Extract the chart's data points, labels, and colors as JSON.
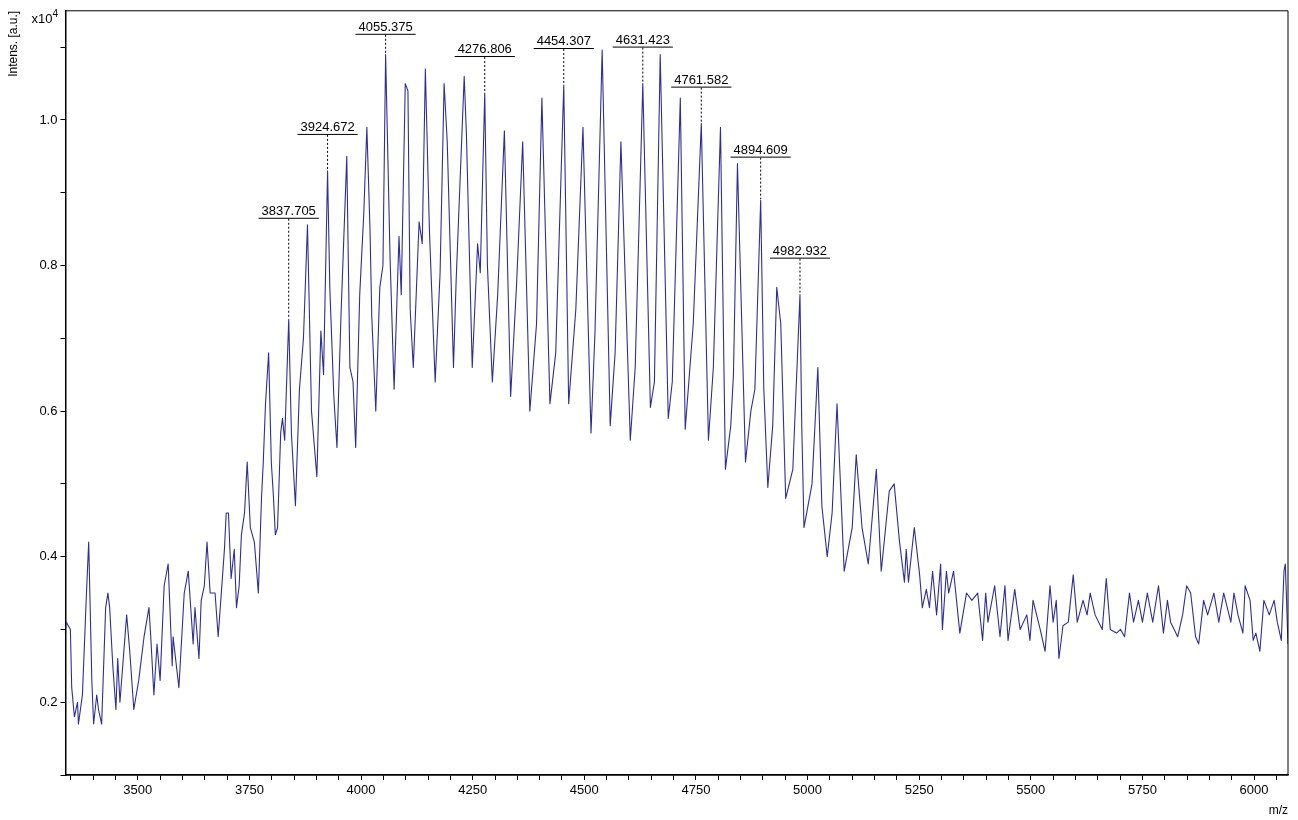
{
  "chart_data": {
    "type": "line",
    "xlabel": "m/z",
    "ylabel": "Intens. [a.u.]",
    "xlim": [
      3338,
      6076
    ],
    "ylim": [
      0.1,
      1.15
    ],
    "xticks": [
      {
        "value": 3350,
        "label": null
      },
      {
        "value": 3400,
        "label": null
      },
      {
        "value": 3450,
        "label": null
      },
      3500,
      {
        "value": 3550,
        "label": null
      },
      {
        "value": 3600,
        "label": null
      },
      {
        "value": 3650,
        "label": null
      },
      {
        "value": 3700,
        "label": null
      },
      3750,
      {
        "value": 3800,
        "label": null
      },
      {
        "value": 3850,
        "label": null
      },
      {
        "value": 3900,
        "label": null
      },
      {
        "value": 3950,
        "label": null
      },
      4000,
      {
        "value": 4050,
        "label": null
      },
      {
        "value": 4100,
        "label": null
      },
      {
        "value": 4150,
        "label": null
      },
      {
        "value": 4200,
        "label": null
      },
      4250,
      {
        "value": 4300,
        "label": null
      },
      {
        "value": 4350,
        "label": null
      },
      {
        "value": 4400,
        "label": null
      },
      {
        "value": 4450,
        "label": null
      },
      4500,
      {
        "value": 4550,
        "label": null
      },
      {
        "value": 4600,
        "label": null
      },
      {
        "value": 4650,
        "label": null
      },
      {
        "value": 4700,
        "label": null
      },
      4750,
      {
        "value": 4800,
        "label": null
      },
      {
        "value": 4850,
        "label": null
      },
      {
        "value": 4900,
        "label": null
      },
      {
        "value": 4950,
        "label": null
      },
      5000,
      {
        "value": 5050,
        "label": null
      },
      {
        "value": 5100,
        "label": null
      },
      {
        "value": 5150,
        "label": null
      },
      {
        "value": 5200,
        "label": null
      },
      5250,
      {
        "value": 5300,
        "label": null
      },
      {
        "value": 5350,
        "label": null
      },
      {
        "value": 5400,
        "label": null
      },
      {
        "value": 5450,
        "label": null
      },
      5500,
      {
        "value": 5550,
        "label": null
      },
      {
        "value": 5600,
        "label": null
      },
      {
        "value": 5650,
        "label": null
      },
      {
        "value": 5700,
        "label": null
      },
      5750,
      {
        "value": 5800,
        "label": null
      },
      {
        "value": 5850,
        "label": null
      },
      {
        "value": 5900,
        "label": null
      },
      {
        "value": 5950,
        "label": null
      },
      6000,
      {
        "value": 6050,
        "label": null
      }
    ],
    "yticks": [
      {
        "value": 0.1,
        "label": null
      },
      0.2,
      {
        "value": 0.3,
        "label": null
      },
      0.4,
      {
        "value": 0.5,
        "label": null
      },
      0.6,
      {
        "value": 0.7,
        "label": null
      },
      0.8,
      {
        "value": 0.9,
        "label": null
      },
      {
        "value": 1,
        "label": "1.0"
      },
      {
        "value": 1.1,
        "label": null
      }
    ],
    "legend": false,
    "marker": "none",
    "line_style": "solid",
    "series": [
      {
        "color": "#2e2e9a",
        "x": [
          3338,
          3340,
          3349,
          3352,
          3358,
          3365,
          3367,
          3376,
          3385,
          3390,
          3397,
          3401,
          3408,
          3412,
          3419,
          3428,
          3433,
          3437,
          3444,
          3451,
          3455,
          3460,
          3475,
          3482,
          3491,
          3502,
          3514,
          3525,
          3529,
          3536,
          3543,
          3550,
          3559,
          3568,
          3577,
          3579,
          3592,
          3604,
          3613,
          3624,
          3628,
          3637,
          3642,
          3649,
          3655,
          3662,
          3673,
          3680,
          3694,
          3698,
          3703,
          3709,
          3716,
          3721,
          3727,
          3732,
          3739,
          3745,
          3752,
          3761,
          3770,
          3777,
          3781,
          3786,
          3793,
          3799,
          3804,
          3808,
          3813,
          3820,
          3824,
          3829,
          3838,
          3844,
          3853,
          3862,
          3871,
          3880,
          3889,
          3901,
          3910,
          3916,
          3925,
          3930,
          3939,
          3946,
          3955,
          3968,
          3975,
          3982,
          3988,
          3997,
          4006,
          4013,
          4020,
          4024,
          4033,
          4042,
          4049,
          4055,
          4065,
          4074,
          4085,
          4090,
          4099,
          4105,
          4110,
          4117,
          4130,
          4137,
          4144,
          4153,
          4166,
          4177,
          4186,
          4193,
          4207,
          4213,
          4231,
          4236,
          4249,
          4261,
          4267,
          4277,
          4283,
          4294,
          4306,
          4321,
          4335,
          4348,
          4362,
          4378,
          4393,
          4405,
          4423,
          4436,
          4454,
          4465,
          4481,
          4497,
          4515,
          4524,
          4540,
          4558,
          4569,
          4582,
          4603,
          4614,
          4631,
          4648,
          4657,
          4670,
          4688,
          4697,
          4715,
          4726,
          4744,
          4762,
          4778,
          4789,
          4805,
          4816,
          4828,
          4834,
          4843,
          4861,
          4873,
          4882,
          4895,
          4902,
          4911,
          4922,
          4931,
          4940,
          4951,
          4967,
          4983,
          4987,
          4992,
          5010,
          5023,
          5032,
          5044,
          5055,
          5066,
          5082,
          5100,
          5109,
          5122,
          5136,
          5154,
          5165,
          5183,
          5194,
          5206,
          5217,
          5221,
          5226,
          5239,
          5251,
          5257,
          5266,
          5273,
          5280,
          5289,
          5298,
          5302,
          5311,
          5316,
          5327,
          5341,
          5356,
          5368,
          5381,
          5392,
          5399,
          5404,
          5419,
          5431,
          5442,
          5449,
          5464,
          5476,
          5491,
          5498,
          5505,
          5521,
          5532,
          5543,
          5550,
          5557,
          5563,
          5572,
          5584,
          5595,
          5604,
          5617,
          5626,
          5633,
          5644,
          5660,
          5669,
          5678,
          5692,
          5701,
          5710,
          5721,
          5730,
          5741,
          5750,
          5761,
          5773,
          5786,
          5797,
          5806,
          5813,
          5829,
          5840,
          5849,
          5858,
          5869,
          5876,
          5887,
          5896,
          5910,
          5921,
          5932,
          5948,
          5955,
          5964,
          5975,
          5980,
          5991,
          5998,
          6004,
          6013,
          6022,
          6034,
          6045,
          6052,
          6061,
          6067,
          6070,
          6076
        ],
        "values": [
          0.3,
          0.31,
          0.3,
          0.22,
          0.18,
          0.2,
          0.17,
          0.21,
          0.35,
          0.42,
          0.23,
          0.17,
          0.21,
          0.19,
          0.17,
          0.33,
          0.35,
          0.33,
          0.25,
          0.19,
          0.26,
          0.2,
          0.32,
          0.27,
          0.19,
          0.23,
          0.29,
          0.33,
          0.29,
          0.21,
          0.28,
          0.23,
          0.36,
          0.39,
          0.25,
          0.29,
          0.22,
          0.35,
          0.38,
          0.28,
          0.33,
          0.26,
          0.34,
          0.36,
          0.42,
          0.35,
          0.35,
          0.29,
          0.41,
          0.46,
          0.46,
          0.37,
          0.41,
          0.33,
          0.36,
          0.43,
          0.46,
          0.53,
          0.44,
          0.42,
          0.35,
          0.48,
          0.53,
          0.61,
          0.68,
          0.53,
          0.48,
          0.43,
          0.44,
          0.57,
          0.59,
          0.56,
          0.726,
          0.57,
          0.47,
          0.63,
          0.7,
          0.856,
          0.6,
          0.51,
          0.71,
          0.65,
          0.93,
          0.77,
          0.62,
          0.55,
          0.73,
          0.95,
          0.66,
          0.64,
          0.55,
          0.76,
          0.87,
          0.99,
          0.85,
          0.73,
          0.6,
          0.77,
          0.8,
          1.09,
          0.81,
          0.63,
          0.84,
          0.76,
          1.05,
          1.04,
          0.74,
          0.66,
          0.86,
          0.83,
          1.07,
          0.85,
          0.64,
          0.79,
          1.05,
          0.97,
          0.66,
          0.78,
          1.06,
          0.98,
          0.66,
          0.83,
          0.79,
          1.037,
          0.8,
          0.64,
          0.76,
          0.985,
          0.62,
          0.77,
          0.97,
          0.6,
          0.72,
          1.03,
          0.61,
          0.68,
          1.048,
          0.61,
          0.74,
          0.99,
          0.57,
          0.71,
          1.096,
          0.58,
          0.68,
          0.97,
          0.56,
          0.66,
          1.05,
          0.605,
          0.64,
          1.09,
          0.59,
          0.64,
          1.03,
          0.575,
          0.72,
          0.995,
          0.56,
          0.66,
          0.99,
          0.52,
          0.58,
          0.65,
          0.94,
          0.53,
          0.6,
          0.63,
          0.89,
          0.63,
          0.495,
          0.58,
          0.77,
          0.72,
          0.48,
          0.52,
          0.76,
          0.58,
          0.44,
          0.5,
          0.66,
          0.47,
          0.4,
          0.46,
          0.61,
          0.38,
          0.44,
          0.54,
          0.44,
          0.39,
          0.52,
          0.38,
          0.49,
          0.5,
          0.42,
          0.365,
          0.41,
          0.365,
          0.44,
          0.375,
          0.33,
          0.355,
          0.33,
          0.38,
          0.32,
          0.39,
          0.3,
          0.38,
          0.35,
          0.38,
          0.295,
          0.35,
          0.34,
          0.35,
          0.285,
          0.35,
          0.31,
          0.36,
          0.29,
          0.36,
          0.285,
          0.355,
          0.3,
          0.32,
          0.285,
          0.34,
          0.3,
          0.27,
          0.36,
          0.31,
          0.34,
          0.26,
          0.305,
          0.31,
          0.375,
          0.31,
          0.34,
          0.32,
          0.35,
          0.32,
          0.3,
          0.37,
          0.3,
          0.295,
          0.3,
          0.29,
          0.35,
          0.31,
          0.34,
          0.31,
          0.35,
          0.31,
          0.36,
          0.295,
          0.34,
          0.31,
          0.29,
          0.32,
          0.36,
          0.35,
          0.29,
          0.28,
          0.34,
          0.32,
          0.35,
          0.31,
          0.35,
          0.31,
          0.35,
          0.32,
          0.295,
          0.36,
          0.34,
          0.285,
          0.295,
          0.27,
          0.34,
          0.32,
          0.34,
          0.31,
          0.285,
          0.38,
          0.39,
          0.28
        ]
      }
    ],
    "annotations": [
      "x10$^{4}$",
      {
        "text": "3837.705",
        "x": 3838,
        "y": 0.726
      },
      {
        "text": "3924.672",
        "x": 3925,
        "y": 0.93
      },
      {
        "text": "4055.375",
        "x": 4055,
        "y": 1.09
      },
      {
        "text": "4276.806",
        "x": 4277,
        "y": 1.037
      },
      {
        "text": "4454.307",
        "x": 4454,
        "y": 1.048
      },
      {
        "text": "4631.423",
        "x": 4631,
        "y": 1.05
      },
      {
        "text": "4761.582",
        "x": 4762,
        "y": 0.995
      },
      {
        "text": "4894.609",
        "x": 4895,
        "y": 0.89
      },
      {
        "text": "4982.932",
        "x": 4983,
        "y": 0.76
      }
    ]
  }
}
